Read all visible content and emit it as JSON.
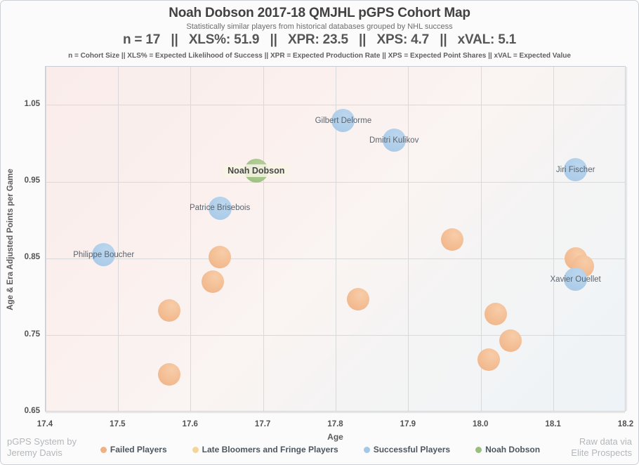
{
  "header": {
    "title": "Noah Dobson 2017-18 QMJHL pGPS Cohort Map",
    "subtitle": "Statistically similar players from historical databases grouped by NHL success",
    "stats_line": "n = 17   ||   XLS%: 51.9   ||   XPR: 23.5   ||   XPS: 4.7   ||   xVAL: 5.1",
    "definitions_line": "n = Cohort Size || XLS% = Expected Likelihood of Success || XPR = Expected Production Rate || XPS = Expected Point Shares || xVAL = Expected Value"
  },
  "footer": {
    "credit_left_line1": "pGPS System by",
    "credit_left_line2": "Jeremy Davis",
    "credit_right_line1": "Raw data via",
    "credit_right_line2": "Elite Prospects"
  },
  "legend": {
    "items": [
      {
        "label": "Failed Players",
        "color": "#f0b183"
      },
      {
        "label": "Late Bloomers and Fringe Players",
        "color": "#f2d69b"
      },
      {
        "label": "Successful Players",
        "color": "#a5c7e6"
      },
      {
        "label": "Noah Dobson",
        "color": "#9abe7c"
      }
    ]
  },
  "colors": {
    "failed": "#f0b183",
    "late_bloomers": "#f2d69b",
    "successful": "#a5c7e6",
    "noah": "#9abe7c",
    "gridline": "#d9d9d9",
    "bg_top_left": "#f9ecea",
    "bg_bottom_right": "#eef3f7"
  },
  "chart_data": {
    "type": "scatter",
    "title": "Noah Dobson 2017-18 QMJHL pGPS Cohort Map",
    "subtitle": "Statistically similar players from historical databases grouped by NHL success",
    "xlabel": "Age",
    "ylabel": "Age & Era Adjusted Points per Game",
    "xlim": [
      17.4,
      18.2
    ],
    "ylim": [
      0.65,
      1.1
    ],
    "xticks": [
      "17.4",
      "17.5",
      "17.6",
      "17.7",
      "17.8",
      "17.9",
      "18.0",
      "18.1",
      "18.2"
    ],
    "yticks": [
      "0.65",
      "0.75",
      "0.85",
      "0.95",
      "1.05"
    ],
    "grid": true,
    "legend_position": "bottom",
    "cohort_size": 17,
    "series": [
      {
        "name": "Failed Players",
        "key": "failed",
        "color": "#f0b184",
        "color_light": "#f7cda8",
        "radius": 16,
        "points": [
          {
            "x": 17.64,
            "y": 0.852
          },
          {
            "x": 17.63,
            "y": 0.82
          },
          {
            "x": 17.57,
            "y": 0.783
          },
          {
            "x": 17.57,
            "y": 0.699
          },
          {
            "x": 17.83,
            "y": 0.797
          },
          {
            "x": 17.96,
            "y": 0.875
          },
          {
            "x": 18.13,
            "y": 0.85
          },
          {
            "x": 18.14,
            "y": 0.84
          },
          {
            "x": 18.02,
            "y": 0.778
          },
          {
            "x": 18.04,
            "y": 0.743
          },
          {
            "x": 18.01,
            "y": 0.719
          }
        ]
      },
      {
        "name": "Late Bloomers and Fringe Players",
        "key": "late",
        "color": "#f2d69b",
        "color_light": "#f7e4b8",
        "radius": 16,
        "points": []
      },
      {
        "name": "Successful Players",
        "key": "successful",
        "color": "#a5c7e6",
        "color_light": "#bcd7ee",
        "radius": 16.5,
        "points": [
          {
            "x": 17.81,
            "y": 1.03,
            "label": "Gilbert Delorme"
          },
          {
            "x": 17.88,
            "y": 1.004,
            "label": "Dmitri Kulikov"
          },
          {
            "x": 18.13,
            "y": 0.966,
            "label": "Jiri Fischer"
          },
          {
            "x": 17.64,
            "y": 0.916,
            "label": "Patrice Brisebois"
          },
          {
            "x": 17.48,
            "y": 0.855,
            "label": "Philippe Boucher"
          },
          {
            "x": 18.13,
            "y": 0.823,
            "label": "Xavier Ouellet"
          }
        ]
      },
      {
        "name": "Noah Dobson",
        "key": "noah",
        "color": "#9abe7c",
        "color_light": "#b4cf9c",
        "radius": 17,
        "points": [
          {
            "x": 17.69,
            "y": 0.965,
            "label": "Noah Dobson",
            "emphasized": true
          }
        ]
      }
    ]
  }
}
